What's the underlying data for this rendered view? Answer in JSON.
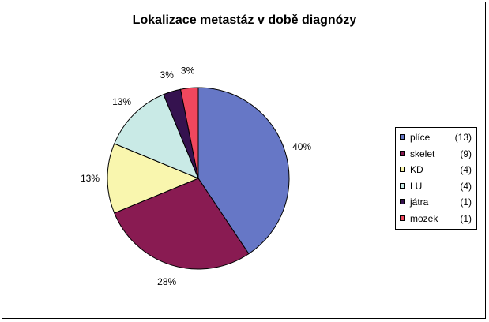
{
  "chart_data": {
    "type": "pie",
    "title": "Lokalizace metastáz v době diagnózy",
    "slices": [
      {
        "name": "plíce",
        "count_label": "(13)",
        "value": 13,
        "percent_label": "40%",
        "color": "#6677C6"
      },
      {
        "name": "skelet",
        "count_label": "(9)",
        "value": 9,
        "percent_label": "28%",
        "color": "#891B52"
      },
      {
        "name": "KD",
        "count_label": "(4)",
        "value": 4,
        "percent_label": "13%",
        "color": "#F9F6AE"
      },
      {
        "name": "LU",
        "count_label": "(4)",
        "value": 4,
        "percent_label": "13%",
        "color": "#C9EAE6"
      },
      {
        "name": "játra",
        "count_label": "(1)",
        "value": 1,
        "percent_label": "3%",
        "color": "#35124F"
      },
      {
        "name": "mozek",
        "count_label": "(1)",
        "value": 1,
        "percent_label": "3%",
        "color": "#F0475E"
      }
    ],
    "legend_position": "right"
  }
}
